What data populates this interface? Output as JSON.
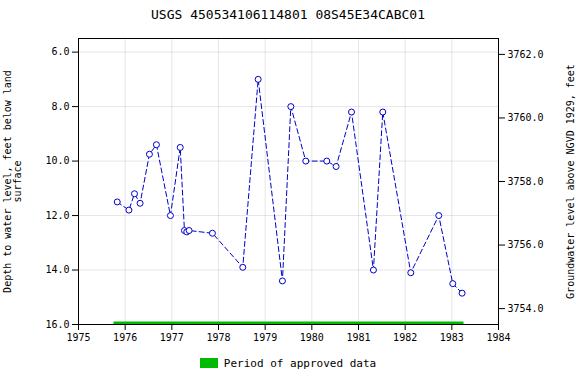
{
  "chart_data": {
    "type": "line",
    "title": "USGS 450534106114801 08S45E34CABC01",
    "y_label": "Depth to water level, feet below land\nsurface",
    "y2_label": "Groundwater level above NGVD 1929, feet",
    "x": [
      1975.83,
      1976.08,
      1976.2,
      1976.32,
      1976.52,
      1976.67,
      1976.97,
      1977.18,
      1977.27,
      1977.32,
      1977.37,
      1977.87,
      1978.52,
      1978.85,
      1979.37,
      1979.55,
      1979.87,
      1980.32,
      1980.52,
      1980.85,
      1981.32,
      1981.52,
      1982.12,
      1982.72,
      1983.02,
      1983.22
    ],
    "series": [
      {
        "color": "#0000cc",
        "line_style": "dashed",
        "marker": "circle",
        "values": [
          11.5,
          11.8,
          11.2,
          11.55,
          9.75,
          9.4,
          12.0,
          9.5,
          12.55,
          12.6,
          12.55,
          12.65,
          13.9,
          7.0,
          14.4,
          8.0,
          10.0,
          10.0,
          10.2,
          8.2,
          14.0,
          8.2,
          14.1,
          12.0,
          14.5,
          14.85
        ]
      },
      {
        "name": "Period of approved data",
        "color": "#00bb00",
        "line_style": "solid",
        "x": [
          1975.75,
          1983.25
        ],
        "values": [
          16.0,
          16.0
        ]
      }
    ],
    "xlim": [
      1975,
      1984
    ],
    "xticks": [
      1975,
      1976,
      1977,
      1978,
      1979,
      1980,
      1981,
      1982,
      1983,
      1984
    ],
    "ylim": [
      16.0,
      5.5
    ],
    "yticks": [
      {
        "value": 6.0,
        "label": "6.0"
      },
      {
        "value": 8.0,
        "label": "8.0"
      },
      {
        "value": 10.0,
        "label": "10.0"
      },
      {
        "value": 12.0,
        "label": "12.0"
      },
      {
        "value": 14.0,
        "label": "14.0"
      },
      {
        "value": 16.0,
        "label": "16.0"
      }
    ],
    "y2lim": [
      3753.5,
      3762.5
    ],
    "y2ticks": [
      {
        "value": 3754.0,
        "label": "3754.0"
      },
      {
        "value": 3756.0,
        "label": "3756.0"
      },
      {
        "value": 3758.0,
        "label": "3758.0"
      },
      {
        "value": 3760.0,
        "label": "3760.0"
      },
      {
        "value": 3762.0,
        "label": "3762.0"
      }
    ],
    "grid": true,
    "legend": "bottom"
  }
}
